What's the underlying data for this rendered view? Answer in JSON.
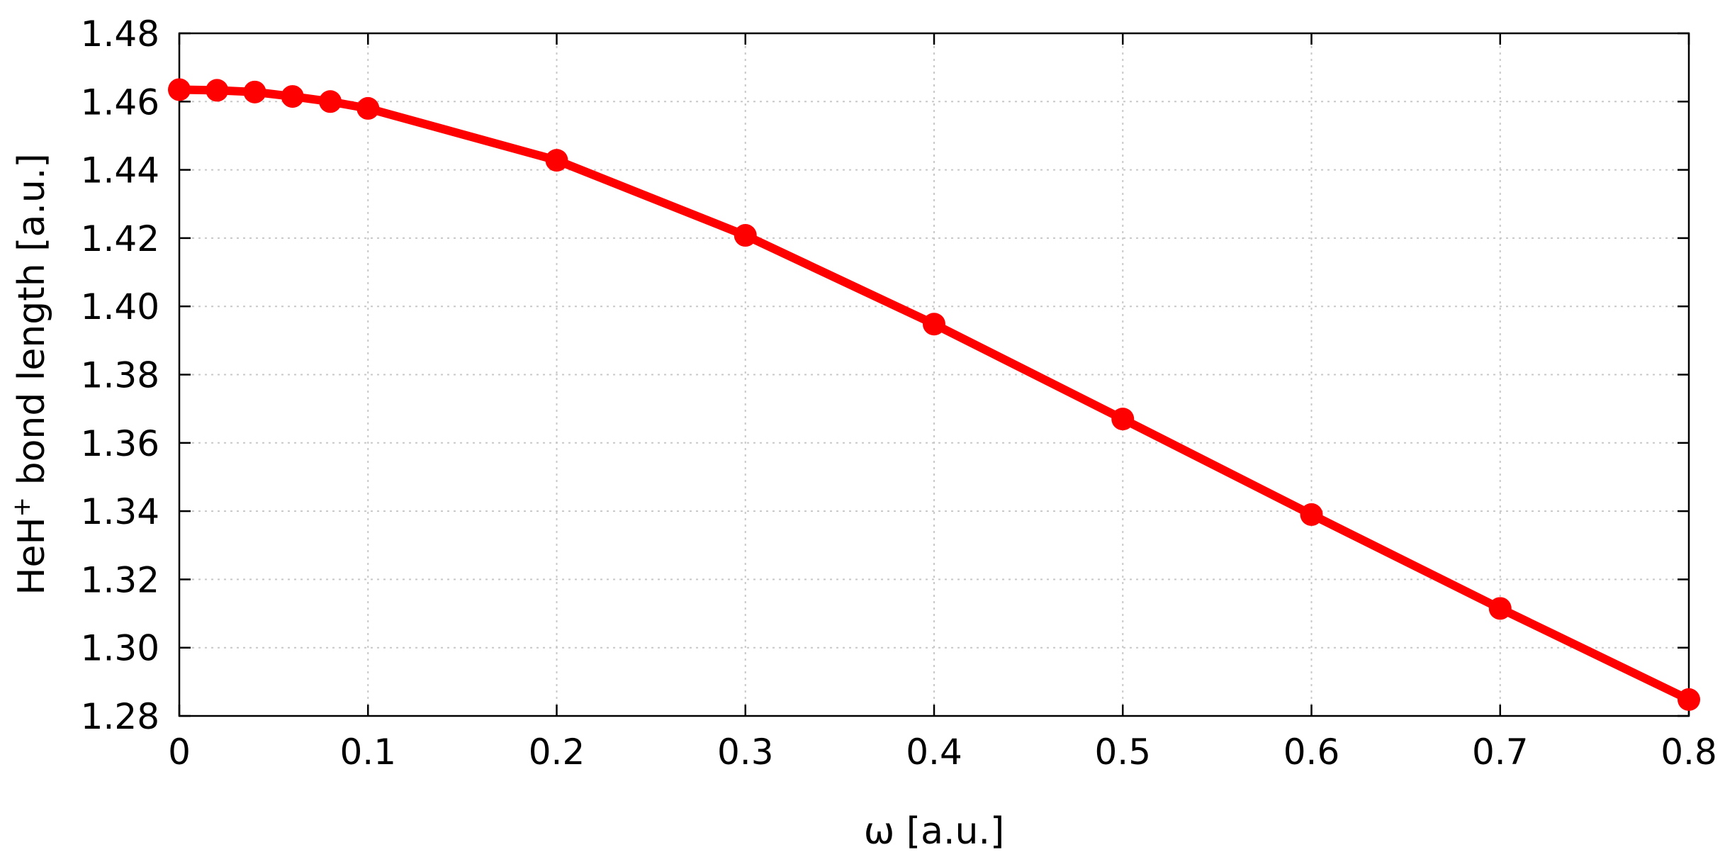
{
  "chart_data": {
    "type": "line",
    "title": "",
    "xlabel": "ω [a.u.]",
    "ylabel_main": "HeH",
    "ylabel_sup": "+",
    "ylabel_rest": " bond length [a.u.]",
    "xlim": [
      0,
      0.8
    ],
    "ylim": [
      1.28,
      1.48
    ],
    "xticks": [
      0,
      0.1,
      0.2,
      0.3,
      0.4,
      0.5,
      0.6,
      0.7,
      0.8
    ],
    "xtick_labels": [
      "0",
      "0.1",
      "0.2",
      "0.3",
      "0.4",
      "0.5",
      "0.6",
      "0.7",
      "0.8"
    ],
    "yticks": [
      1.28,
      1.3,
      1.32,
      1.34,
      1.36,
      1.38,
      1.4,
      1.42,
      1.44,
      1.46,
      1.48
    ],
    "ytick_labels": [
      "1.28",
      "1.30",
      "1.32",
      "1.34",
      "1.36",
      "1.38",
      "1.40",
      "1.42",
      "1.44",
      "1.46",
      "1.48"
    ],
    "grid": true,
    "series": [
      {
        "color": "#ff0000",
        "x": [
          0,
          0.02,
          0.04,
          0.06,
          0.08,
          0.1,
          0.2,
          0.3,
          0.4,
          0.5,
          0.6,
          0.7,
          0.8
        ],
        "y": [
          1.4635,
          1.4633,
          1.4628,
          1.4615,
          1.46,
          1.458,
          1.4428,
          1.4208,
          1.3948,
          1.367,
          1.339,
          1.3115,
          1.2848
        ]
      }
    ]
  }
}
